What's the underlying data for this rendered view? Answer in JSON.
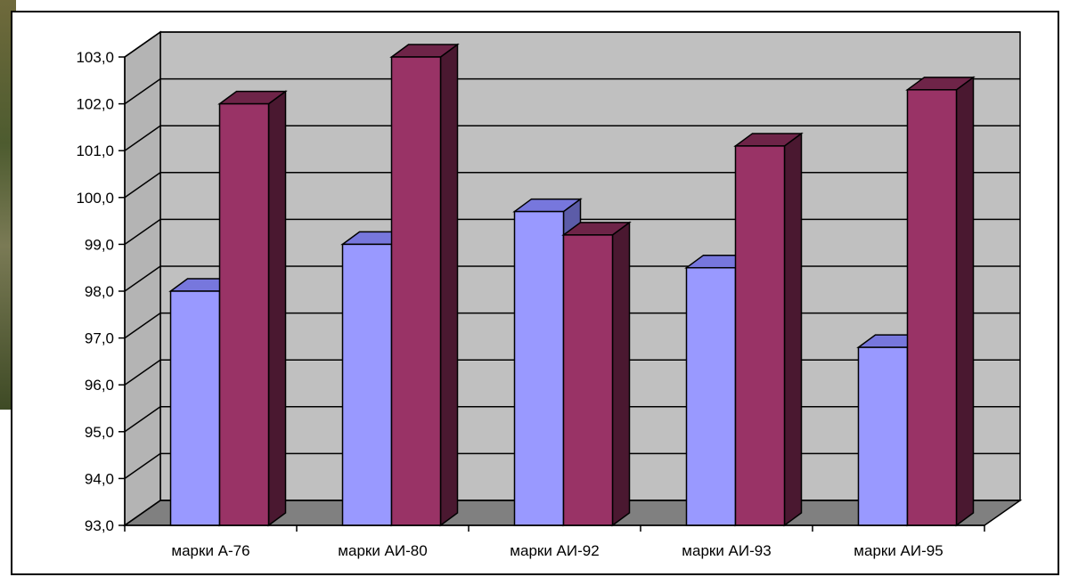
{
  "chart_data": {
    "type": "bar",
    "categories": [
      "марки А-76",
      "марки АИ-80",
      "марки АИ-92",
      "марки АИ-93",
      "марки АИ-95"
    ],
    "series": [
      {
        "values": [
          98.0,
          99.0,
          99.7,
          98.5,
          96.8
        ],
        "color": "#9999ff",
        "top_color": "#7777dd",
        "side_color": "#5c5ca8"
      },
      {
        "values": [
          102.0,
          103.0,
          99.2,
          101.1,
          102.3
        ],
        "color": "#993366",
        "top_color": "#6e2448",
        "side_color": "#4a1830"
      }
    ],
    "yticks": [
      "93,0",
      "94,0",
      "95,0",
      "96,0",
      "97,0",
      "98,0",
      "99,0",
      "100,0",
      "101,0",
      "102,0",
      "103,0"
    ],
    "ylim": [
      93,
      103
    ],
    "grid": true,
    "wall_color": "#c0c0c0",
    "floor_color": "#808080"
  }
}
